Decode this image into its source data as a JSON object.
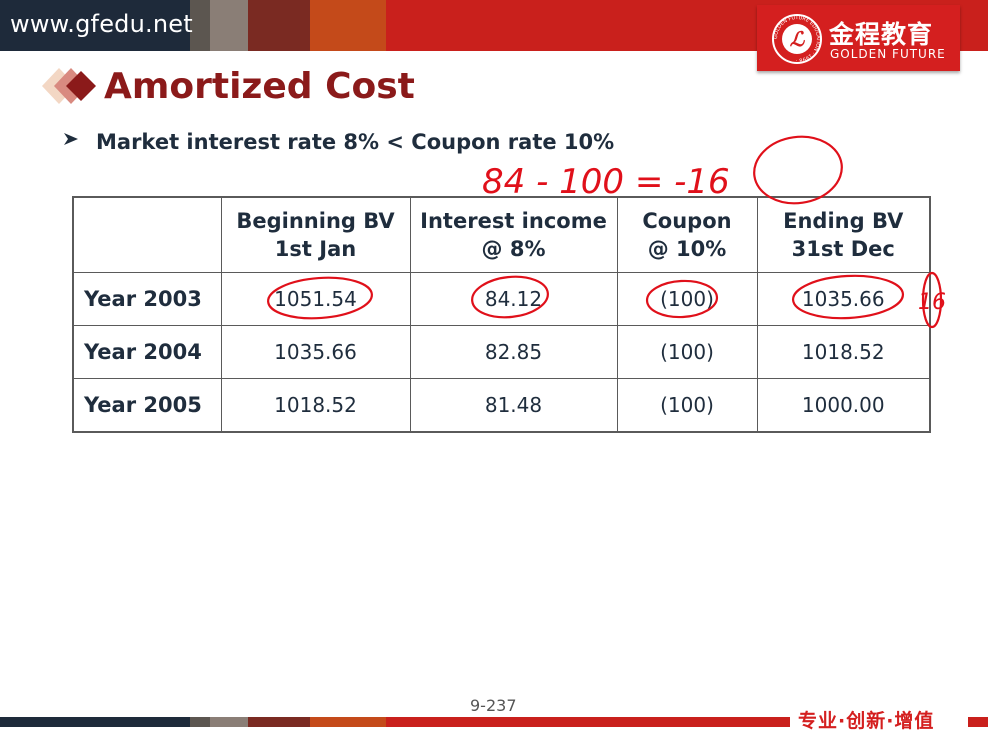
{
  "header": {
    "site_url": "www.gfedu.net",
    "logo_cn": "金程教育",
    "logo_en": "GOLDEN FUTURE",
    "seal_ring_text": "GOLDEN FUTURE EDUCATION · 1998 ·"
  },
  "slide": {
    "title": "Amortized Cost",
    "bullet": "Market interest rate 8% < Coupon rate 10%",
    "page_number": "9-237",
    "slogan": "专业·创新·增值"
  },
  "table": {
    "headers": [
      {
        "line1": "",
        "line2": ""
      },
      {
        "line1": "Beginning BV",
        "line2": "1st Jan"
      },
      {
        "line1": "Interest income",
        "line2": "@ 8%"
      },
      {
        "line1": "Coupon",
        "line2": "@ 10%"
      },
      {
        "line1": "Ending BV",
        "line2": "31st Dec"
      }
    ],
    "rows": [
      {
        "label": "Year 2003",
        "beginning": "1051.54",
        "interest": "84.12",
        "coupon": "(100)",
        "ending": "1035.66"
      },
      {
        "label": "Year 2004",
        "beginning": "1035.66",
        "interest": "82.85",
        "coupon": "(100)",
        "ending": "1018.52"
      },
      {
        "label": "Year 2005",
        "beginning": "1018.52",
        "interest": "81.48",
        "coupon": "(100)",
        "ending": "1000.00"
      }
    ]
  },
  "annotations": {
    "handwritten_note": "84 - 100 = -16",
    "margin_mark": "16",
    "ink_color": "#e0101a"
  },
  "colors": {
    "brand_red": "#d41f1f",
    "title_red": "#8b1a1a",
    "text_dark": "#1f2d3d",
    "bar_navy": "#1e2a3a"
  }
}
